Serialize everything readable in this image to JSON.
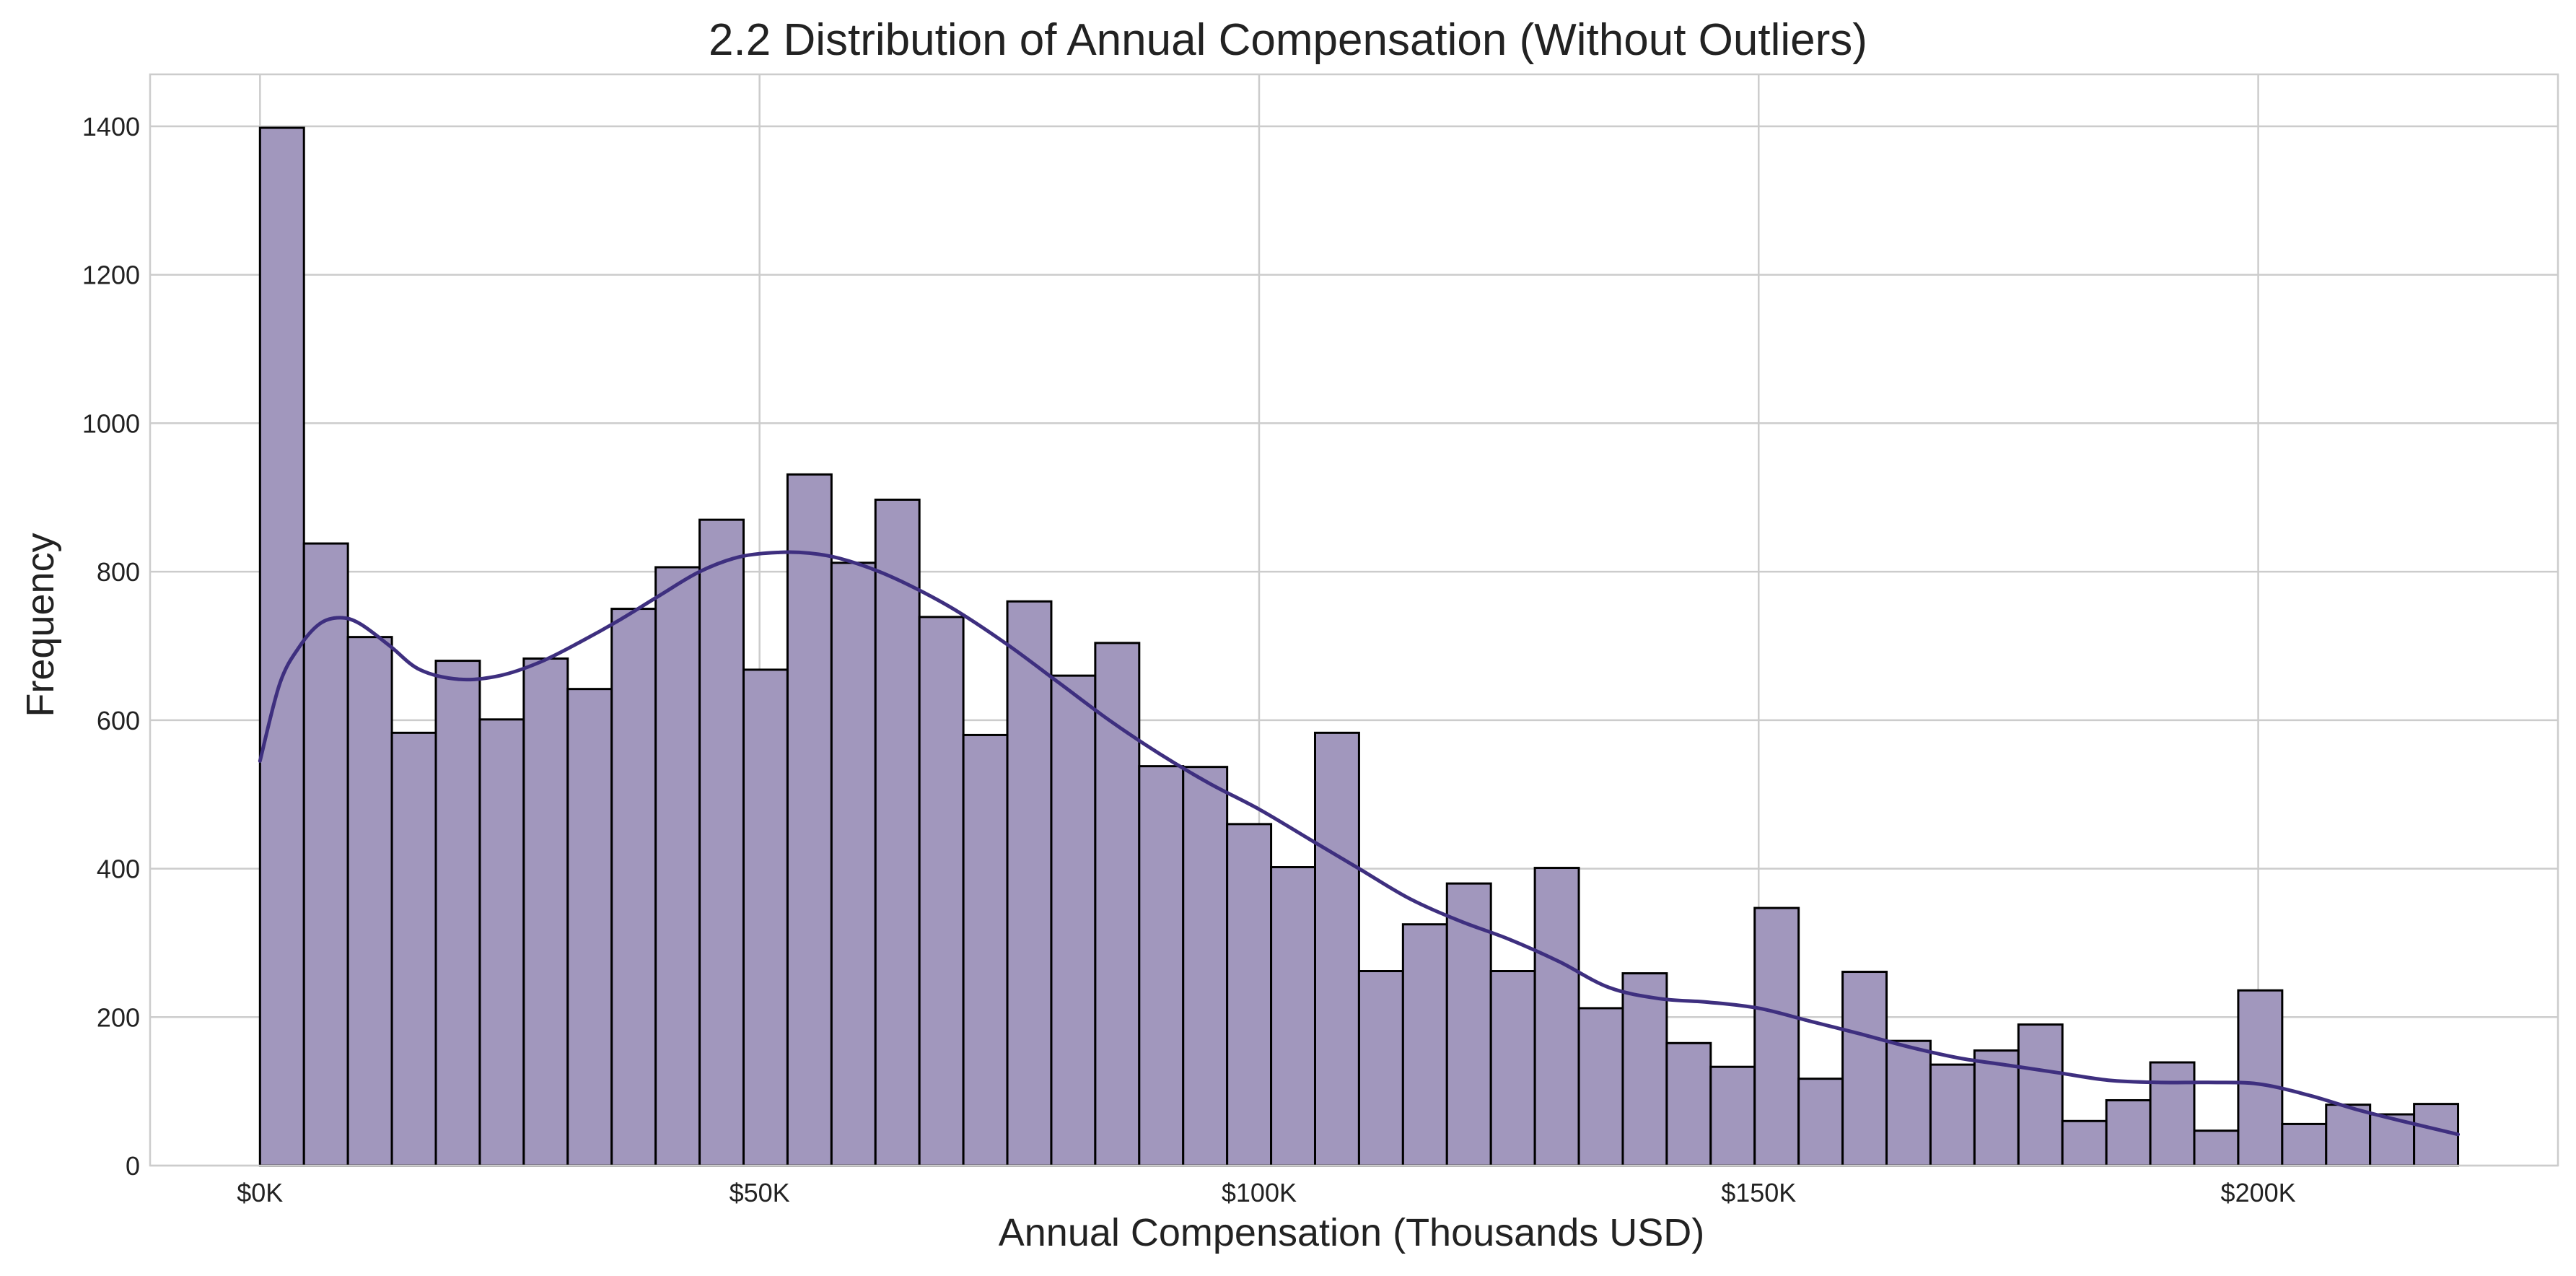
{
  "colors": {
    "bar_fill": "#a197bd",
    "bar_edge": "#000000",
    "kde_line": "#3e2f7f",
    "grid": "#cccccc",
    "text": "#222222",
    "background": "#ffffff"
  },
  "chart_data": {
    "type": "histogram",
    "title": "2.2 Distribution of Annual Compensation (Without Outliers)",
    "xlabel": "Annual Compensation (Thousands USD)",
    "ylabel": "Frequency",
    "xlim": [
      -11,
      230
    ],
    "ylim": [
      0,
      1470
    ],
    "grid": true,
    "legend": "none",
    "x_ticks": [
      {
        "value": 0,
        "label": "$0K"
      },
      {
        "value": 50,
        "label": "$50K"
      },
      {
        "value": 100,
        "label": "$100K"
      },
      {
        "value": 150,
        "label": "$150K"
      },
      {
        "value": 200,
        "label": "$200K"
      }
    ],
    "y_ticks": [
      {
        "value": 0,
        "label": "0"
      },
      {
        "value": 200,
        "label": "200"
      },
      {
        "value": 400,
        "label": "400"
      },
      {
        "value": 600,
        "label": "600"
      },
      {
        "value": 800,
        "label": "800"
      },
      {
        "value": 1000,
        "label": "1000"
      },
      {
        "value": 1200,
        "label": "1200"
      },
      {
        "value": 1400,
        "label": "1400"
      }
    ],
    "bin_start": 0,
    "bin_width": 4.4,
    "counts": [
      1398,
      838,
      712,
      583,
      680,
      601,
      683,
      642,
      750,
      806,
      870,
      668,
      931,
      812,
      897,
      739,
      580,
      760,
      660,
      704,
      538,
      537,
      460,
      402,
      583,
      262,
      325,
      380,
      262,
      401,
      212,
      259,
      165,
      133,
      347,
      117,
      261,
      168,
      136,
      155,
      190,
      60,
      88,
      139,
      47,
      236,
      56,
      82,
      69,
      83
    ],
    "kde": {
      "x": [
        0,
        2,
        4,
        6,
        8,
        10,
        13,
        16,
        20,
        24,
        28,
        32,
        36,
        40,
        44,
        48,
        52,
        55,
        58,
        62,
        66,
        70,
        75,
        80,
        85,
        90,
        95,
        100,
        105,
        110,
        115,
        120,
        125,
        130,
        135,
        140,
        145,
        150,
        155,
        160,
        165,
        170,
        175,
        180,
        185,
        190,
        195,
        200,
        205,
        210,
        215,
        220
      ],
      "y": [
        545,
        650,
        700,
        730,
        738,
        730,
        700,
        668,
        655,
        660,
        678,
        705,
        735,
        768,
        800,
        820,
        826,
        825,
        818,
        800,
        775,
        745,
        700,
        650,
        600,
        555,
        515,
        480,
        440,
        400,
        360,
        330,
        305,
        275,
        240,
        225,
        220,
        212,
        195,
        178,
        160,
        145,
        135,
        125,
        115,
        112,
        112,
        110,
        95,
        75,
        58,
        42
      ]
    }
  }
}
